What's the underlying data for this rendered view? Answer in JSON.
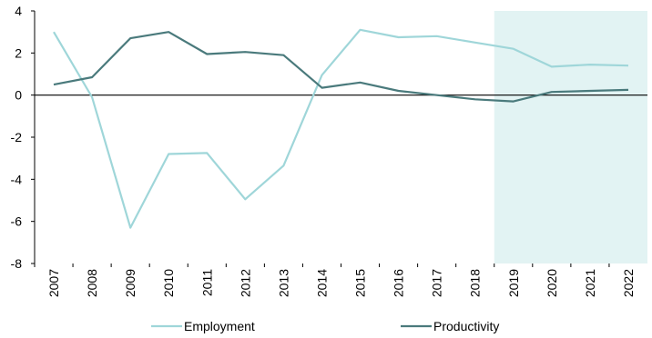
{
  "chart_data": {
    "type": "line",
    "title": "",
    "xlabel": "",
    "ylabel": "",
    "x": [
      "2007",
      "2008",
      "2009",
      "2010",
      "2011",
      "2012",
      "2013",
      "2014",
      "2015",
      "2016",
      "2017",
      "2018",
      "2019",
      "2020",
      "2021",
      "2022"
    ],
    "ylim": [
      -8,
      4
    ],
    "yticks": [
      "4",
      "2",
      "0",
      "-2",
      "-4",
      "-6",
      "-8"
    ],
    "ytick_values": [
      4,
      2,
      0,
      -2,
      -4,
      -6,
      -8
    ],
    "shaded_region": {
      "from": "2019",
      "to": "2022",
      "color": "#e2f3f3"
    },
    "legend_position": "bottom",
    "series": [
      {
        "name": "Employment",
        "color": "#9fd6d9",
        "values": [
          3.0,
          -0.1,
          -6.3,
          -2.8,
          -2.75,
          -4.95,
          -3.35,
          0.95,
          3.1,
          2.75,
          2.8,
          2.5,
          2.2,
          1.35,
          1.45,
          1.4
        ]
      },
      {
        "name": "Productivity",
        "color": "#4a7a7c",
        "values": [
          0.5,
          0.85,
          2.7,
          3.0,
          1.95,
          2.05,
          1.9,
          0.35,
          0.6,
          0.2,
          0.0,
          -0.2,
          -0.3,
          0.15,
          0.2,
          0.25
        ]
      }
    ]
  }
}
